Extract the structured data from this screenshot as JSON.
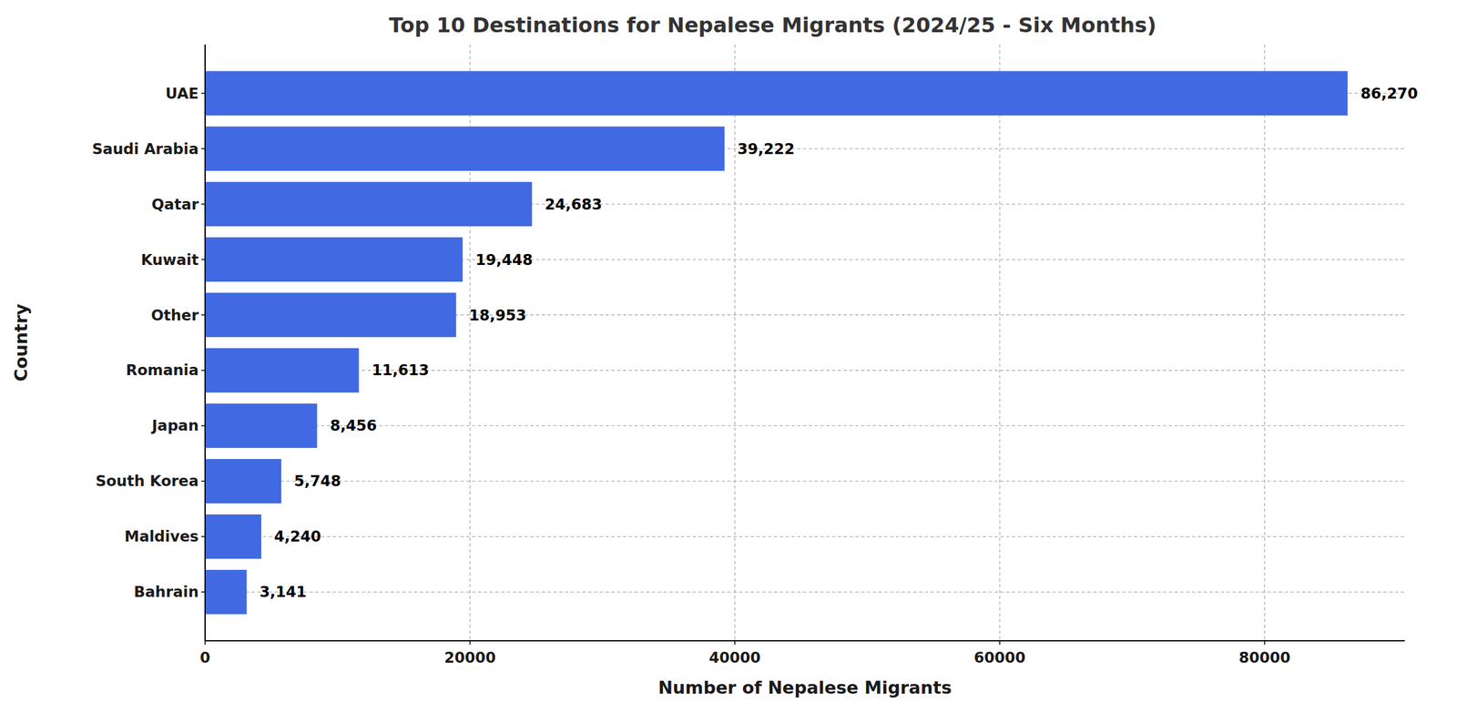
{
  "chart_data": {
    "type": "bar",
    "orientation": "horizontal",
    "title": "Top 10 Destinations for Nepalese Migrants (2024/25 - Six Months)",
    "xlabel": "Number of Nepalese Migrants",
    "ylabel": "Country",
    "categories": [
      "UAE",
      "Saudi Arabia",
      "Qatar",
      "Kuwait",
      "Other",
      "Romania",
      "Japan",
      "South Korea",
      "Maldives",
      "Bahrain"
    ],
    "values": [
      86270,
      39222,
      24683,
      19448,
      18953,
      11613,
      8456,
      5748,
      4240,
      3141
    ],
    "value_labels": [
      "86,270",
      "39,222",
      "24,683",
      "19,448",
      "18,953",
      "11,613",
      "8,456",
      "5,748",
      "4,240",
      "3,141"
    ],
    "color": "#4169e1",
    "xlim": [
      0,
      90584
    ],
    "xticks": [
      0,
      20000,
      40000,
      60000,
      80000
    ],
    "grid": true,
    "data_labels": true
  }
}
